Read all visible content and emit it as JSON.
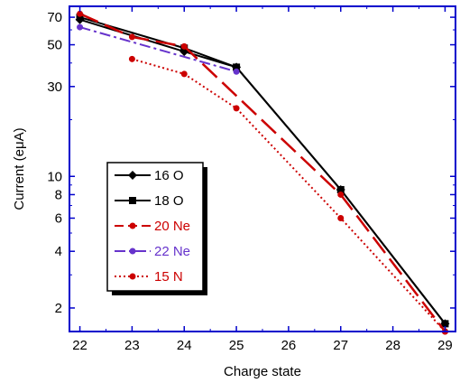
{
  "chart_data": {
    "type": "line",
    "title": "",
    "xlabel": "Charge state",
    "ylabel": "Current (eμA)",
    "xlim": [
      21.8,
      29.2
    ],
    "ylim": [
      1.5,
      80
    ],
    "y_scale": "log",
    "x_ticks": [
      22,
      23,
      24,
      25,
      26,
      27,
      28,
      29
    ],
    "y_ticks": [
      2,
      4,
      6,
      8,
      10,
      30,
      50,
      70
    ],
    "axis_color": "#0000cc",
    "grid": false,
    "legend_placement": "center-left",
    "series": [
      {
        "name": "16 O",
        "color": "#000000",
        "dash": "solid",
        "marker": "diamond",
        "x": [
          22,
          24,
          25,
          27,
          29
        ],
        "y": [
          68,
          46,
          38,
          8.5,
          1.65
        ]
      },
      {
        "name": "18 O",
        "color": "#000000",
        "dash": "solid",
        "marker": "square",
        "x": [
          22,
          24,
          25,
          27,
          29
        ],
        "y": [
          70,
          48,
          38,
          8.5,
          1.65
        ]
      },
      {
        "name": "20 Ne",
        "color": "#cc0000",
        "dash": "long-dash",
        "marker": "circle",
        "x": [
          22,
          23,
          24,
          27,
          29
        ],
        "y": [
          73,
          55,
          49,
          8.0,
          1.5
        ]
      },
      {
        "name": "22 Ne",
        "color": "#6633cc",
        "dash": "dash-dot",
        "marker": "circle",
        "x": [
          22,
          25
        ],
        "y": [
          62,
          36
        ]
      },
      {
        "name": "15 N",
        "color": "#cc0000",
        "dash": "dot",
        "marker": "circle",
        "x": [
          23,
          24,
          25,
          27,
          29
        ],
        "y": [
          42,
          35,
          23,
          6.0,
          1.5
        ]
      }
    ]
  }
}
